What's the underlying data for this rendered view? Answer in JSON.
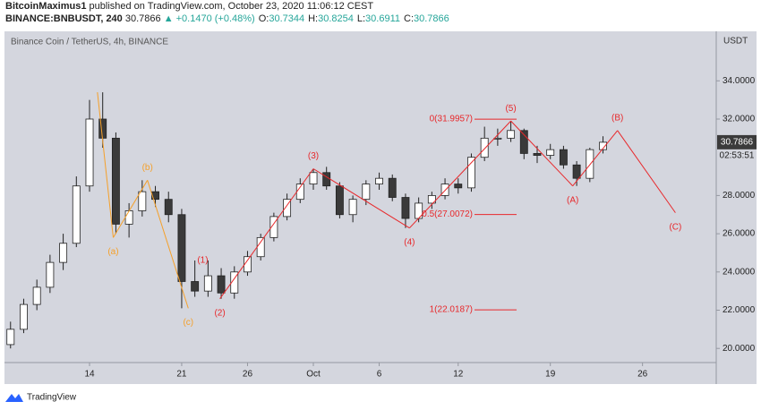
{
  "header": {
    "author": "BitcoinMaximus1",
    "published": "published on TradingView.com, October 23, 2020 11:06:12 CEST",
    "symbol": "BINANCE:BNBUSDT, 240",
    "price": "30.7866",
    "change": "▲ +0.1470 (+0.48%)",
    "ohlc": [
      {
        "key": "O:",
        "value": "30.7344"
      },
      {
        "key": "H:",
        "value": "30.8254"
      },
      {
        "key": "L:",
        "value": "30.6911"
      },
      {
        "key": "C:",
        "value": "30.7866"
      }
    ]
  },
  "chart_data": {
    "type": "candlestick",
    "title": "Binance Coin / TetherUS, 4h, BINANCE",
    "y_unit": "USDT",
    "x": [
      8,
      9,
      10,
      11,
      12,
      13,
      14,
      15,
      16,
      17,
      18,
      19,
      20,
      21,
      22,
      23,
      24,
      25,
      26,
      27,
      28,
      29,
      30,
      31,
      32,
      33,
      34,
      35,
      36,
      37,
      38,
      39,
      40,
      41,
      42,
      43,
      44,
      45,
      46,
      47,
      48,
      49,
      50,
      51,
      52,
      53
    ],
    "open": [
      20.2,
      21.0,
      22.3,
      23.2,
      24.5,
      25.5,
      28.5,
      32.0,
      31.0,
      26.5,
      27.2,
      28.2,
      27.8,
      27.0,
      23.5,
      23.0,
      23.8,
      22.9,
      24.0,
      24.8,
      25.8,
      26.9,
      27.8,
      28.6,
      29.2,
      28.5,
      27.0,
      27.8,
      28.6,
      28.9,
      27.9,
      26.8,
      27.6,
      28.0,
      28.6,
      28.4,
      30.0,
      31.0,
      31.0,
      31.4,
      30.2,
      30.1,
      30.4,
      29.6,
      28.9,
      30.4
    ],
    "high": [
      21.4,
      22.6,
      23.6,
      24.9,
      26.0,
      29.0,
      33.0,
      33.4,
      31.3,
      27.6,
      28.8,
      28.5,
      28.2,
      27.3,
      24.6,
      24.6,
      24.2,
      24.3,
      25.1,
      26.0,
      27.1,
      28.1,
      28.9,
      29.4,
      29.5,
      28.7,
      28.0,
      28.8,
      29.2,
      29.1,
      28.1,
      27.9,
      28.2,
      28.9,
      28.9,
      30.2,
      31.6,
      31.5,
      31.9,
      31.5,
      30.6,
      30.7,
      30.6,
      29.8,
      30.5,
      31.1
    ],
    "low": [
      20.0,
      20.8,
      22.0,
      22.9,
      24.1,
      25.3,
      28.2,
      30.5,
      26.0,
      25.8,
      26.9,
      27.4,
      26.6,
      22.1,
      22.7,
      22.7,
      22.6,
      22.6,
      23.8,
      24.6,
      25.6,
      26.7,
      27.6,
      28.3,
      28.3,
      26.8,
      26.6,
      27.5,
      28.3,
      27.7,
      26.3,
      26.6,
      27.3,
      27.8,
      28.1,
      28.2,
      29.8,
      30.6,
      30.8,
      29.9,
      29.7,
      29.9,
      29.4,
      28.5,
      28.7,
      30.2
    ],
    "close": [
      21.0,
      22.3,
      23.2,
      24.5,
      25.5,
      28.5,
      32.0,
      31.0,
      26.5,
      27.2,
      28.2,
      27.8,
      27.0,
      23.5,
      23.0,
      23.8,
      22.9,
      24.0,
      24.8,
      25.8,
      26.9,
      27.8,
      28.6,
      29.2,
      28.5,
      27.0,
      27.8,
      28.6,
      28.9,
      27.9,
      26.8,
      27.6,
      28.0,
      28.6,
      28.4,
      30.0,
      31.0,
      31.0,
      31.4,
      30.2,
      30.1,
      30.4,
      29.6,
      28.9,
      30.4,
      30.7866
    ],
    "up_color": "#ffffff",
    "down_color": "#3a3a3a",
    "xlim": [
      7.54,
      61.6
    ],
    "ylim": [
      19.26,
      36.59
    ],
    "xticks": [
      {
        "value": 14,
        "label": "14"
      },
      {
        "value": 21,
        "label": "21"
      },
      {
        "value": 26,
        "label": "26"
      },
      {
        "value": 31,
        "label": "Oct"
      },
      {
        "value": 36,
        "label": "6"
      },
      {
        "value": 42,
        "label": "12"
      },
      {
        "value": 49,
        "label": "19"
      },
      {
        "value": 56,
        "label": "26"
      }
    ],
    "yticks": [
      {
        "value": 20,
        "label": "20.0000"
      },
      {
        "value": 22,
        "label": "22.0000"
      },
      {
        "value": 24,
        "label": "24.0000"
      },
      {
        "value": 26,
        "label": "26.0000"
      },
      {
        "value": 28,
        "label": "28.0000"
      },
      {
        "value": 32,
        "label": "32.0000"
      },
      {
        "value": 34,
        "label": "34.0000"
      }
    ],
    "grid": false,
    "last_price": 30.7866,
    "last_price_label": "30.7866",
    "countdown": "02:53:51",
    "waves": [
      {
        "color": "#f5a02a",
        "points": [
          {
            "x": 14.6,
            "y": 33.4,
            "label": null
          },
          {
            "x": 15.8,
            "y": 25.8,
            "label": "(a)"
          },
          {
            "x": 18.4,
            "y": 28.8,
            "label": "(b)"
          },
          {
            "x": 21.5,
            "y": 22.1,
            "label": "(c)"
          }
        ]
      },
      {
        "color": "#e8282b",
        "points": [
          {
            "x": 23.9,
            "y": 22.6,
            "label": "(2)"
          },
          {
            "x": 31.0,
            "y": 29.4,
            "label": "(3)"
          },
          {
            "x": 38.3,
            "y": 26.3,
            "label": "(4)"
          },
          {
            "x": 46.0,
            "y": 31.9,
            "label": "(5)"
          },
          {
            "x": 50.7,
            "y": 28.5,
            "label": "(A)"
          },
          {
            "x": 54.1,
            "y": 31.4,
            "label": "(B)"
          },
          {
            "x": 58.5,
            "y": 27.1,
            "label": "(C)"
          }
        ]
      }
    ],
    "extra_labels": [
      {
        "x": 22.6,
        "y": 24.6,
        "label": "(1)",
        "color": "#e8282b"
      }
    ],
    "fib_levels": [
      {
        "label": "0(31.9957)",
        "value": 31.9957
      },
      {
        "label": "0.5(27.0072)",
        "value": 27.0072
      },
      {
        "label": "1(22.0187)",
        "value": 22.0187
      }
    ],
    "fib_color": "#e8282b"
  },
  "footer": {
    "brand": "TradingView"
  }
}
